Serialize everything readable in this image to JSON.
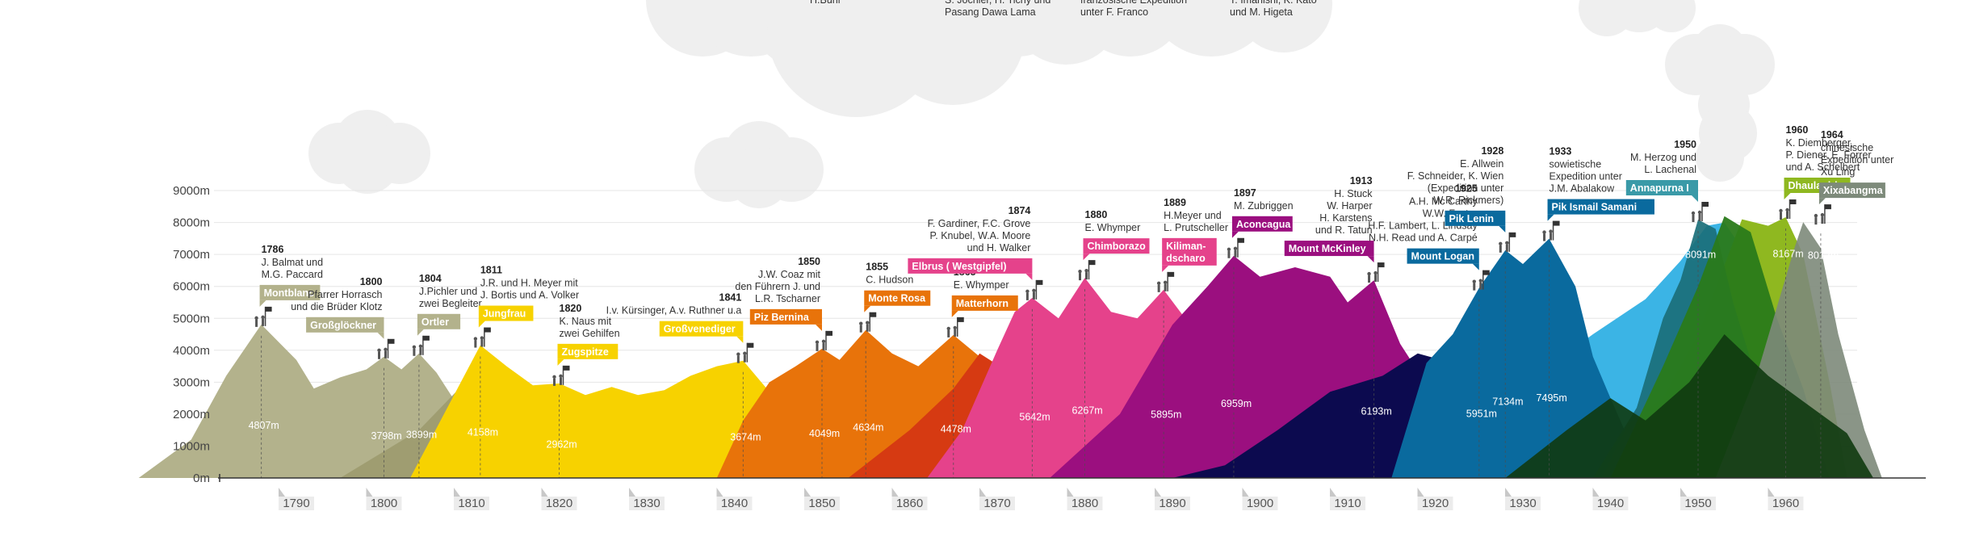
{
  "chart_data": {
    "type": "area",
    "title": "",
    "xlabel": "",
    "ylabel": "",
    "xlim": [
      1770,
      1965
    ],
    "ylim": [
      0,
      9000
    ],
    "y_unit": "m",
    "y_ticks": [
      {
        "value": 0,
        "label": "0m"
      },
      {
        "value": 1000,
        "label": "1000m"
      },
      {
        "value": 2000,
        "label": "2000m"
      },
      {
        "value": 3000,
        "label": "3000m"
      },
      {
        "value": 4000,
        "label": "4000m"
      },
      {
        "value": 5000,
        "label": "5000m"
      },
      {
        "value": 6000,
        "label": "6000m"
      },
      {
        "value": 7000,
        "label": "7000m"
      },
      {
        "value": 8000,
        "label": "8000m"
      },
      {
        "value": 9000,
        "label": "9000m"
      }
    ],
    "x_ticks": [
      1790,
      1800,
      1810,
      1820,
      1830,
      1840,
      1850,
      1860,
      1870,
      1880,
      1890,
      1900,
      1910,
      1920,
      1930,
      1940,
      1950,
      1960
    ],
    "grid": true,
    "summits": [
      {
        "name": "Montblanc",
        "year": "1786",
        "x": 1786,
        "height": 4807,
        "height_label": "4807m",
        "climbers": [
          "J. Balmat und",
          "M.G. Paccard"
        ],
        "color": "#b3b28c"
      },
      {
        "name": "Großglöckner",
        "year": "1800",
        "x": 1800,
        "height": 3798,
        "height_label": "3798m",
        "climbers": [
          "Pfarrer Horrasch",
          "und die Brüder Klotz"
        ],
        "color": "#b3b28c"
      },
      {
        "name": "Ortler",
        "year": "1804",
        "x": 1804,
        "height": 3899,
        "height_label": "3899m",
        "climbers": [
          "J.Pichler und",
          "zwei Begleiter"
        ],
        "color": "#b3b28c"
      },
      {
        "name": "Jungfrau",
        "year": "1811",
        "x": 1811,
        "height": 4158,
        "height_label": "4158m",
        "climbers": [
          "J.R. und H. Meyer mit",
          "J. Bortis und A. Volker"
        ],
        "color": "#f7d200"
      },
      {
        "name": "Zugspitze",
        "year": "1820",
        "x": 1820,
        "height": 2962,
        "height_label": "2962m",
        "climbers": [
          "K. Naus mit",
          "zwei Gehilfen"
        ],
        "color": "#f7d200"
      },
      {
        "name": "Großvenediger",
        "year": "1841",
        "x": 1841,
        "height": 3674,
        "height_label": "3674m",
        "climbers": [
          "I.v. Kürsinger, A.v. Ruthner u.a"
        ],
        "color": "#f7d200"
      },
      {
        "name": "Piz Bernina",
        "year": "1850",
        "x": 1850,
        "height": 4049,
        "height_label": "4049m",
        "climbers": [
          "J.W. Coaz mit",
          "den Führern J. und",
          "L.R. Tscharner"
        ],
        "color": "#e8730a"
      },
      {
        "name": "Monte Rosa",
        "year": "1855",
        "x": 1855,
        "height": 4634,
        "height_label": "4634m",
        "climbers": [
          "C. Hudson"
        ],
        "color": "#e8730a"
      },
      {
        "name": "Matterhorn",
        "year": "1865",
        "x": 1865,
        "height": 4478,
        "height_label": "4478m",
        "climbers": [
          "E. Whymper"
        ],
        "color": "#e8730a"
      },
      {
        "name": "Elbrus ( Westgipfel)",
        "year": "1874",
        "x": 1874,
        "height": 5642,
        "height_label": "5642m",
        "climbers": [
          "F. Gardiner, F.C. Grove",
          "P. Knubel, W.A. Moore",
          "und H. Walker"
        ],
        "color": "#e5428b"
      },
      {
        "name": "Chimborazo",
        "year": "1880",
        "x": 1880,
        "height": 6267,
        "height_label": "6267m",
        "climbers": [
          "E. Whymper"
        ],
        "color": "#e5428b"
      },
      {
        "name": "Kilimandscharo",
        "tag_lines": [
          "Kiliman-",
          "dscharo"
        ],
        "year": "1889",
        "x": 1889,
        "height": 5895,
        "height_label": "5895m",
        "climbers": [
          "H.Meyer und",
          "L. Prutscheller"
        ],
        "color": "#e5428b"
      },
      {
        "name": "Aconcagua",
        "year": "1897",
        "x": 1897,
        "height": 6959,
        "height_label": "6959m",
        "climbers": [
          "M. Zubriggen"
        ],
        "color": "#9b0f7f"
      },
      {
        "name": "Mount McKinley",
        "year": "1913",
        "x": 1913,
        "height": 6193,
        "height_label": "6193m",
        "climbers": [
          "H. Stuck",
          "W. Harper",
          "H. Karstens",
          "und R. Tatun"
        ],
        "color": "#9b0f7f"
      },
      {
        "name": "Mount Logan",
        "year": "1925",
        "x": 1925,
        "height": 5951,
        "height_label": "5951m",
        "climbers": [
          "A.H. Mc Carthy",
          "W.W. Foster",
          "H.F. Lambert, L. Lindsay",
          "N.H. Read und A. Carpé"
        ],
        "color": "#0a6a9e"
      },
      {
        "name": "Pik Lenin",
        "year": "1928",
        "x": 1928,
        "height": 7134,
        "height_label": "7134m",
        "climbers": [
          "E. Allwein",
          "F. Schneider, K. Wien",
          "(Expedition unter",
          "W.R. Rickmers)"
        ],
        "color": "#0a6a9e"
      },
      {
        "name": "Pik Ismail Samani",
        "year": "1933",
        "x": 1933,
        "height": 7495,
        "height_label": "7495m",
        "climbers": [
          "sowietische",
          "Expedition unter",
          "J.M. Abalakow"
        ],
        "color": "#0a6a9e"
      },
      {
        "name": "Annapurna I",
        "year": "1950",
        "x": 1950,
        "height": 8091,
        "height_label": "8091m",
        "climbers": [
          "M. Herzog und",
          "L. Lachenal"
        ],
        "color": "#3a9aa8"
      },
      {
        "name": "Dhaulagiri",
        "year": "1960",
        "x": 1960,
        "height": 8167,
        "height_label": "8167m",
        "climbers": [
          "K. Diemberger,",
          "P. Diener, E. Forrer",
          "und A. Schelbert"
        ],
        "color": "#8fb820"
      },
      {
        "name": "Xixabangma",
        "year": "1964",
        "x": 1964,
        "height": 8012,
        "height_label": "8012m",
        "climbers": [
          "chinesische",
          "Expedition unter",
          "Xu Ling"
        ],
        "color": "#7d8a7a"
      }
    ],
    "top_partial_texts": [
      "H.Buhl",
      "S. Jochler, H. Tichy und",
      "Pasang Dawa Lama",
      "französische Expedition",
      "unter F. Franco",
      "T. Imanishi, K. Kato",
      "und M. Higeta"
    ],
    "mountain_colors": {
      "olive": "#b3b28c",
      "yellow": "#f7d200",
      "orange": "#e8730a",
      "red": "#d63a12",
      "pink": "#e5428b",
      "purple": "#9b0f7f",
      "navy": "#0c0a4f",
      "blue": "#0a6a9e",
      "skyblue": "#3bb4e5",
      "green": "#2a7a1a",
      "lime": "#8fb820",
      "grey": "#7d8a7a",
      "darkgreen": "#0f3a10"
    }
  }
}
